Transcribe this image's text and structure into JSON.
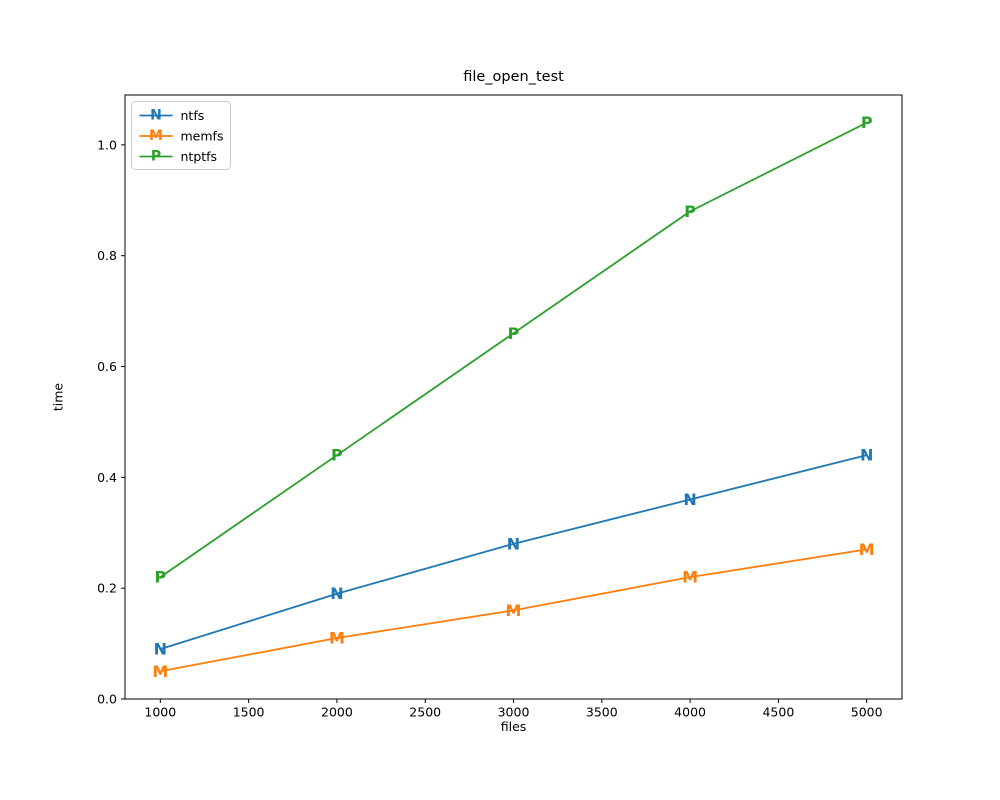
{
  "chart_data": {
    "type": "line",
    "title": "file_open_test",
    "xlabel": "files",
    "ylabel": "time",
    "x": [
      1000,
      2000,
      3000,
      4000,
      5000
    ],
    "series": [
      {
        "name": "ntfs",
        "marker": "N",
        "color": "#1f77b4",
        "values": [
          0.09,
          0.19,
          0.28,
          0.36,
          0.44
        ]
      },
      {
        "name": "memfs",
        "marker": "M",
        "color": "#ff7f0e",
        "values": [
          0.05,
          0.11,
          0.16,
          0.22,
          0.27
        ]
      },
      {
        "name": "ntptfs",
        "marker": "P",
        "color": "#2ca02c",
        "values": [
          0.22,
          0.44,
          0.66,
          0.88,
          1.04
        ]
      }
    ],
    "xlim": [
      800,
      5200
    ],
    "ylim": [
      0,
      1.09
    ],
    "x_ticks": [
      1000,
      1500,
      2000,
      2500,
      3000,
      3500,
      4000,
      4500,
      5000
    ],
    "y_ticks": [
      "0.0",
      "0.2",
      "0.4",
      "0.6",
      "0.8",
      "1.0"
    ],
    "legend_position": "upper left",
    "grid": false,
    "colors": {
      "text": "#000000",
      "spine": "#000000",
      "legend_border": "#cccccc",
      "background": "#ffffff"
    }
  }
}
